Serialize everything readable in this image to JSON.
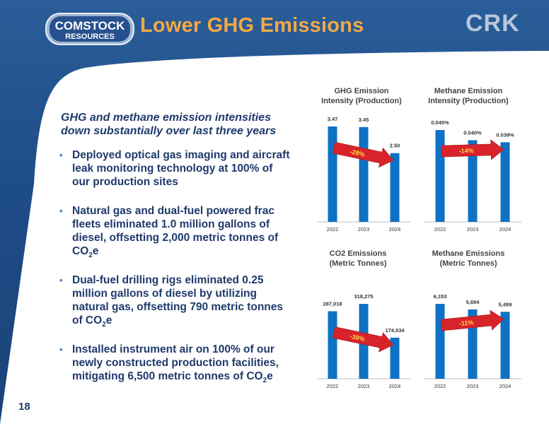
{
  "header": {
    "logo_line1": "COMSTOCK",
    "logo_line2": "RESOURCES",
    "title": "Lower GHG Emissions",
    "brand": "CRK"
  },
  "intro": "GHG and methane emission intensities down substantially over last three years",
  "bullets": [
    {
      "pre": "Deployed optical gas imaging and aircraft leak monitoring technology at 100% of our production sites",
      "sub": "",
      "post": ""
    },
    {
      "pre": "Natural gas and dual-fuel powered frac fleets eliminated 1.0 million gallons of diesel, offsetting 2,000 metric tonnes of CO",
      "sub": "2",
      "post": "e"
    },
    {
      "pre": "Dual-fuel drilling rigs eliminated 0.25 million gallons of diesel by utilizing natural gas, offsetting 790 metric tonnes of CO",
      "sub": "2",
      "post": "e"
    },
    {
      "pre": "Installed instrument air on 100% of our newly constructed production facilities, mitigating 6,500 metric tonnes of CO",
      "sub": "2",
      "post": "e"
    }
  ],
  "page_number": "18",
  "colors": {
    "bar": "#0e72c4",
    "arrow": "#d9232a",
    "title_orange": "#f2a945",
    "navy": "#1f3a6b"
  },
  "chart_data": [
    {
      "type": "bar",
      "title_line1": "GHG Emission",
      "title_line2": "Intensity (Production)",
      "categories": [
        "2022",
        "2023",
        "2024"
      ],
      "values": [
        3.47,
        3.45,
        2.5
      ],
      "labels": [
        "3.47",
        "3.45",
        "2.50"
      ],
      "change": "-28%"
    },
    {
      "type": "bar",
      "title_line1": "Methane Emission",
      "title_line2": "Intensity (Production)",
      "categories": [
        "2022",
        "2023",
        "2024"
      ],
      "values": [
        0.045,
        0.04,
        0.039
      ],
      "labels": [
        "0.045%",
        "0.040%",
        "0.039%"
      ],
      "change": "-14%"
    },
    {
      "type": "bar",
      "title_line1": "CO2 Emissions",
      "title_line2": "(Metric Tonnes)",
      "categories": [
        "2022",
        "2023",
        "2024"
      ],
      "values": [
        287018,
        318275,
        174534
      ],
      "labels": [
        "287,018",
        "318,275",
        "174,534"
      ],
      "change": "-39%"
    },
    {
      "type": "bar",
      "title_line1": "Methane Emissions",
      "title_line2": "(Metric Tonnes)",
      "categories": [
        "2022",
        "2023",
        "2024"
      ],
      "values": [
        6153,
        5694,
        5499
      ],
      "labels": [
        "6,153",
        "5,694",
        "5,499"
      ],
      "change": "-11%"
    }
  ]
}
